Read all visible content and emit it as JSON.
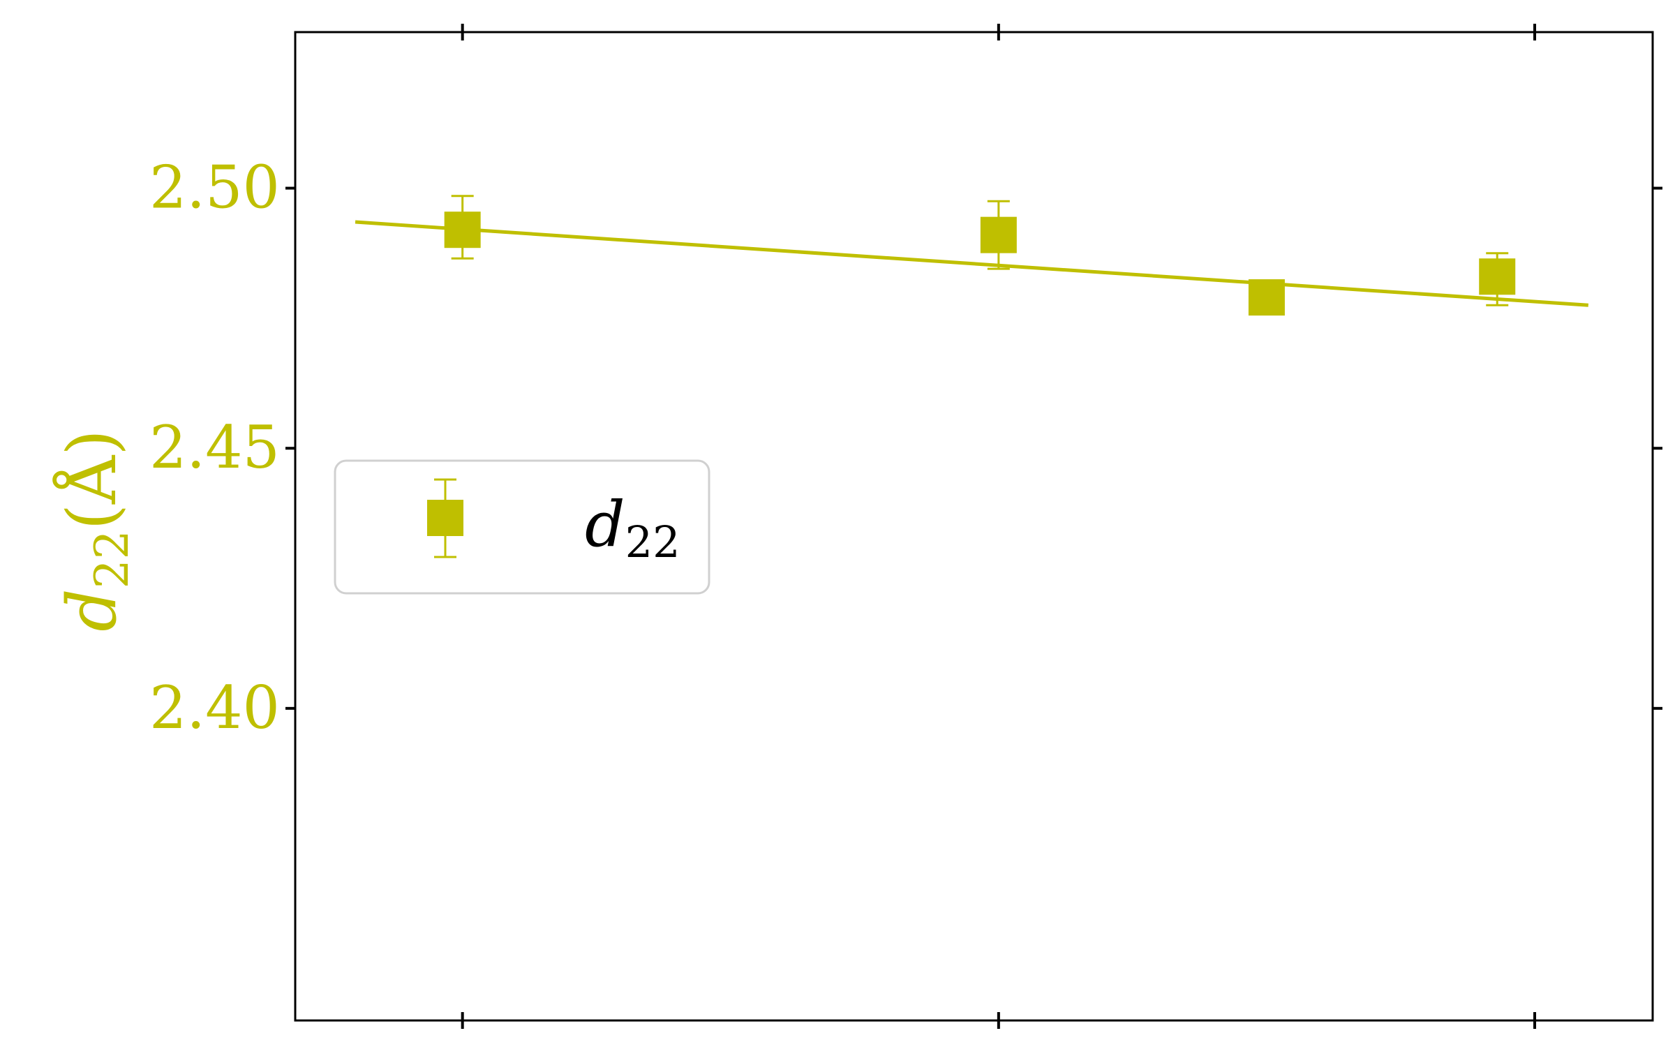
{
  "colors": {
    "series": "#bfbf00",
    "axis": "#000000",
    "legend_border": "#d0d0d0"
  },
  "chart_data": {
    "type": "scatter",
    "title": "",
    "xlabel": "",
    "ylabel": {
      "main": "d",
      "sub": "22",
      "unit": "(Å)"
    },
    "ylim": [
      2.34,
      2.53
    ],
    "xlim": [
      -0.312,
      2.22
    ],
    "yticks": [
      "2.40",
      "2.45",
      "2.50"
    ],
    "ytick_values": [
      2.4,
      2.45,
      2.5
    ],
    "xtick_values": [
      0,
      1,
      2
    ],
    "grid": false,
    "legend": {
      "placement": "center-left",
      "label_main": "d",
      "label_sub": "22"
    },
    "series": [
      {
        "name": "d22",
        "marker": "square",
        "x": [
          0.0,
          1.0,
          1.5,
          1.93
        ],
        "y": [
          2.492,
          2.491,
          2.479,
          2.483
        ],
        "err_low": [
          0.0055,
          0.0065,
          0.0015,
          0.0055
        ],
        "err_high": [
          0.0065,
          0.0065,
          0.0015,
          0.0045
        ]
      }
    ],
    "fit_line": {
      "x": [
        -0.2,
        2.1
      ],
      "y": [
        2.4935,
        2.4775
      ]
    }
  }
}
